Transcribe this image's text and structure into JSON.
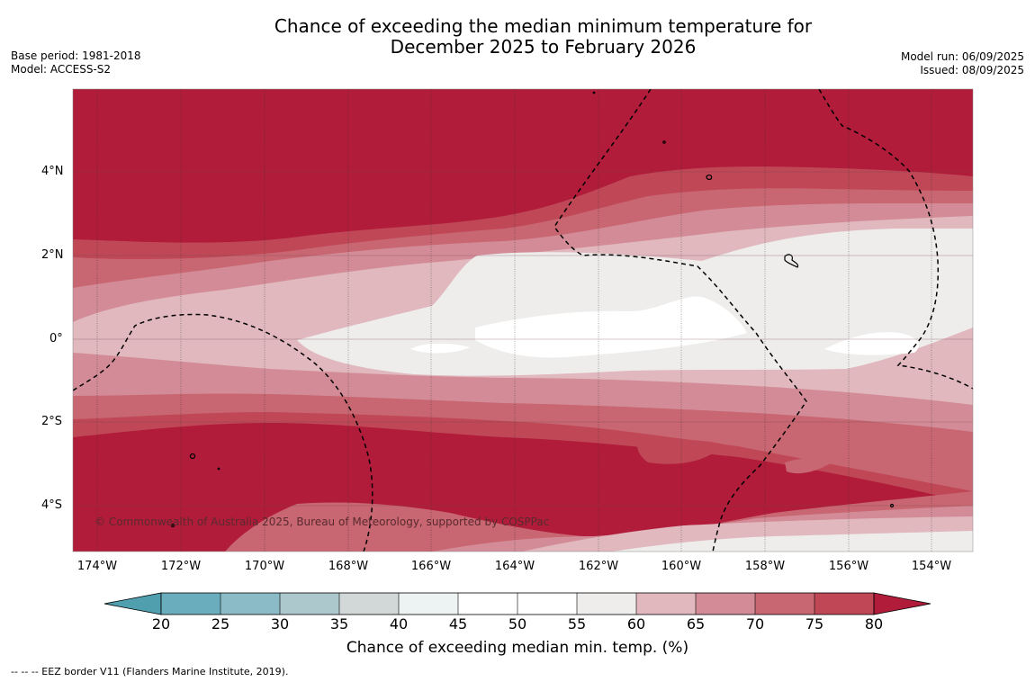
{
  "title_line1": "Chance of exceeding the median minimum temperature for",
  "title_line2": "December 2025 to February 2026",
  "base_period": "Base period: 1981-2018",
  "model": "Model: ACCESS-S2",
  "model_run": "Model run: 06/09/2025",
  "issued": "Issued: 08/09/2025",
  "lat_labels": [
    "4°N",
    "2°N",
    "0°",
    "2°S",
    "4°S"
  ],
  "lon_labels": [
    "174°W",
    "172°W",
    "170°W",
    "168°W",
    "166°W",
    "164°W",
    "162°W",
    "160°W",
    "158°W",
    "156°W",
    "154°W"
  ],
  "copyright": "© Commonwealth of Australia 2025, Bureau of Meteorology, supported by COSPPac",
  "colorbar": {
    "ticks": [
      "20",
      "25",
      "30",
      "35",
      "40",
      "45",
      "50",
      "55",
      "60",
      "65",
      "70",
      "75",
      "80"
    ],
    "colors": {
      "below_20": "#4f9fae",
      "20_25": "#6aaebd",
      "25_30": "#8abbc6",
      "30_35": "#acc8cd",
      "35_40": "#d2d8d8",
      "40_45": "#edf2f2",
      "45_50": "#ffffff",
      "50_55": "#ffffff",
      "55_60": "#eeedec",
      "60_65": "#e0b8be",
      "65_70": "#d38c97",
      "70_75": "#c86671",
      "75_80": "#bf4756",
      "above_80": "#b01c39"
    },
    "title": "Chance of exceeding median min. temp. (%)"
  },
  "footnote": "--  --  -- EEZ border V11 (Flanders Marine Institute, 2019)."
}
